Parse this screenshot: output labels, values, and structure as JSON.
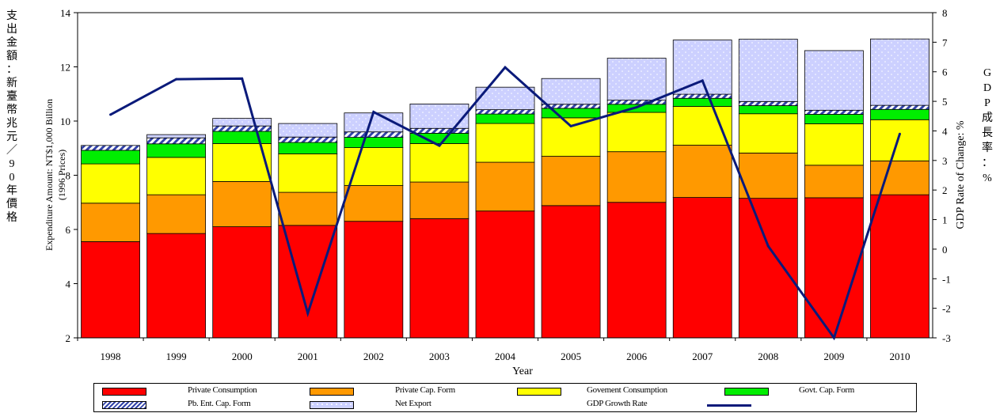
{
  "chart_data": {
    "type": "bar",
    "stacked": true,
    "xlabel": "Year",
    "ylabel_left": "Expenditure Amount: NT$1,000 Billion",
    "ylabel_left_sub": "(1996 Prices)",
    "ylabel_right": "GDP Rate of Change: %",
    "ylabel_left_zh": "支出金額：新臺幣兆元／90年價格",
    "ylabel_right_zh": "GDP成長率：%",
    "left_axis": {
      "ylim": [
        2,
        14
      ],
      "ticks": [
        "2",
        "4",
        "6",
        "8",
        "10",
        "12",
        "14"
      ]
    },
    "right_axis": {
      "ylim": [
        -3,
        8
      ],
      "ticks": [
        "-3",
        "-2",
        "-1",
        "0",
        "1",
        "2",
        "3",
        "4",
        "5",
        "6",
        "7",
        "8"
      ]
    },
    "categories": [
      "1998",
      "1999",
      "2000",
      "2001",
      "2002",
      "2003",
      "2004",
      "2005",
      "2006",
      "2007",
      "2008",
      "2009",
      "2010"
    ],
    "series": [
      {
        "name": "Private Consumption",
        "color": "#ff0000",
        "pattern": "solid",
        "values": [
          3.55,
          3.85,
          4.1,
          4.15,
          4.3,
          4.4,
          4.68,
          4.88,
          5.0,
          5.18,
          5.15,
          5.17,
          5.28
        ]
      },
      {
        "name": "Private Cap. Form",
        "color": "#ff9900",
        "pattern": "solid",
        "values": [
          1.42,
          1.43,
          1.67,
          1.22,
          1.32,
          1.35,
          1.8,
          1.82,
          1.87,
          1.93,
          1.67,
          1.2,
          1.25
        ]
      },
      {
        "name": "Govement Consumption",
        "color": "#ffff00",
        "pattern": "solid",
        "values": [
          1.45,
          1.38,
          1.4,
          1.42,
          1.4,
          1.42,
          1.43,
          1.42,
          1.45,
          1.43,
          1.45,
          1.53,
          1.52
        ]
      },
      {
        "name": "Govt. Cap. Form",
        "color": "#00ee00",
        "pattern": "solid",
        "values": [
          0.5,
          0.5,
          0.45,
          0.42,
          0.38,
          0.38,
          0.35,
          0.35,
          0.3,
          0.3,
          0.3,
          0.35,
          0.38
        ]
      },
      {
        "name": "Pb. Ent. Cap. Form",
        "color": "#3344aa",
        "pattern": "hatch",
        "values": [
          0.18,
          0.22,
          0.2,
          0.2,
          0.2,
          0.18,
          0.16,
          0.15,
          0.15,
          0.15,
          0.15,
          0.15,
          0.15
        ]
      },
      {
        "name": "Net Export",
        "color": "#ccd0ff",
        "pattern": "dots",
        "values": [
          0.0,
          0.12,
          0.28,
          0.5,
          0.7,
          0.9,
          0.83,
          0.95,
          1.55,
          2.0,
          2.3,
          2.2,
          2.45
        ]
      }
    ],
    "line_series": {
      "name": "GDP Growth Rate",
      "color": "#0a1a7a",
      "axis": "right",
      "values": [
        4.55,
        5.75,
        5.77,
        -2.17,
        4.64,
        3.5,
        6.15,
        4.16,
        4.8,
        5.7,
        0.1,
        -3.0,
        3.9
      ]
    },
    "grid": false,
    "legend_position": "bottom"
  },
  "legend": {
    "items": [
      {
        "label": "Private Consumption",
        "color": "#ff0000",
        "pattern": "solid"
      },
      {
        "label": "Private Cap. Form",
        "color": "#ff9900",
        "pattern": "solid"
      },
      {
        "label": "Govement Consumption",
        "color": "#ffff00",
        "pattern": "solid"
      },
      {
        "label": "Govt. Cap. Form",
        "color": "#00ee00",
        "pattern": "solid"
      },
      {
        "label": "Pb. Ent. Cap. Form",
        "color": "#3344aa",
        "pattern": "hatch"
      },
      {
        "label": "Net Export",
        "color": "#ccd0ff",
        "pattern": "dots"
      },
      {
        "label": "GDP Growth Rate",
        "color": "#0a1a7a",
        "pattern": "line"
      }
    ]
  }
}
